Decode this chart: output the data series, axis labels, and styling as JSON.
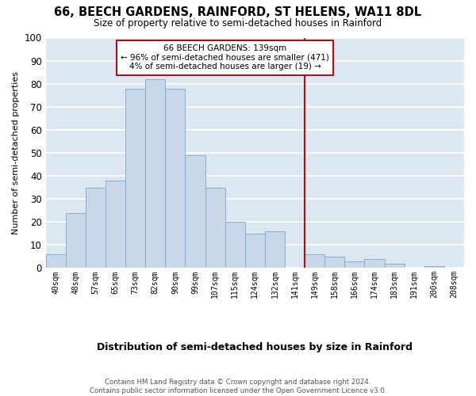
{
  "title": "66, BEECH GARDENS, RAINFORD, ST HELENS, WA11 8DL",
  "subtitle": "Size of property relative to semi-detached houses in Rainford",
  "xlabel": "Distribution of semi-detached houses by size in Rainford",
  "ylabel": "Number of semi-detached properties",
  "bin_labels": [
    "40sqm",
    "48sqm",
    "57sqm",
    "65sqm",
    "73sqm",
    "82sqm",
    "90sqm",
    "99sqm",
    "107sqm",
    "115sqm",
    "124sqm",
    "132sqm",
    "141sqm",
    "149sqm",
    "158sqm",
    "166sqm",
    "174sqm",
    "183sqm",
    "191sqm",
    "200sqm",
    "208sqm"
  ],
  "bar_values": [
    6,
    24,
    35,
    38,
    78,
    82,
    78,
    49,
    35,
    20,
    15,
    16,
    0,
    6,
    5,
    3,
    4,
    2,
    0,
    1,
    0
  ],
  "bar_color": "#c8d8ea",
  "bar_edge_color": "#7aaac8",
  "vline_color": "#aa1111",
  "ylim": [
    0,
    100
  ],
  "yticks": [
    0,
    10,
    20,
    30,
    40,
    50,
    60,
    70,
    80,
    90,
    100
  ],
  "annotation_title": "66 BEECH GARDENS: 139sqm",
  "annotation_line1": "← 96% of semi-detached houses are smaller (471)",
  "annotation_line2": "4% of semi-detached houses are larger (19) →",
  "footer_line1": "Contains HM Land Registry data © Crown copyright and database right 2024.",
  "footer_line2": "Contains public sector information licensed under the Open Government Licence v3.0.",
  "fig_bg_color": "#ffffff",
  "plot_bg_color": "#dce8f0",
  "grid_color": "#ffffff",
  "vline_index": 12
}
